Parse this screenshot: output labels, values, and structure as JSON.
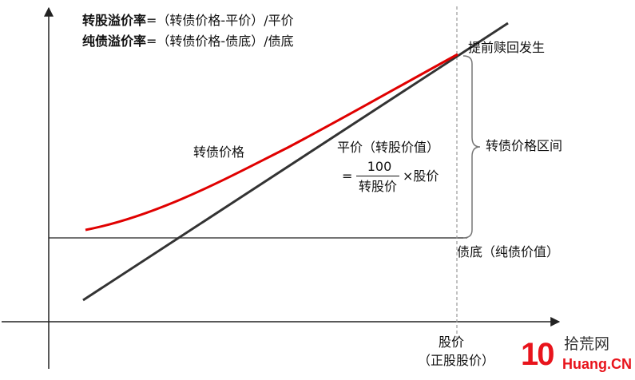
{
  "formulas": {
    "conv_premium_term": "转股溢价率",
    "conv_premium_expr": "=（转债价格-平价）/平价",
    "bond_premium_term": "纯债溢价率",
    "bond_premium_expr": "=（转债价格-债底）/债底"
  },
  "labels": {
    "early_redemption": "提前赎回发生",
    "cb_price_range": "转债价格区间",
    "cb_price": "转债价格",
    "parity": "平价（转股价值）",
    "parity_eq": "=",
    "parity_numerator": "100",
    "parity_denominator": "转股价",
    "parity_times_price": "×股价",
    "bond_floor": "债底（纯债价值）",
    "x_axis_title": "股价",
    "x_axis_subtitle": "（正股股价）"
  },
  "watermark": {
    "number": "10",
    "cn": "拾荒网",
    "en": "Huang.CN"
  },
  "colors": {
    "axis": "#222222",
    "parity_line": "#333333",
    "cb_curve": "#e00000",
    "dashed": "#999999",
    "logo_red": "#e8141c",
    "logo_dark": "#333333"
  }
}
